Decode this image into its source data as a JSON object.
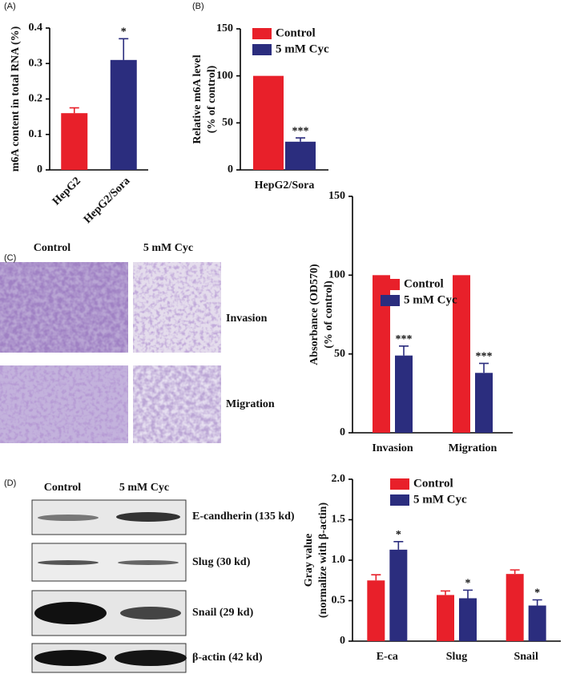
{
  "chart_data": [
    {
      "type": "bar",
      "panel": "(A)",
      "y_label": [
        "m6A content in total RNA (%)"
      ],
      "categories": [
        "HepG2",
        "HepG2/Sora"
      ],
      "values": [
        0.16,
        0.31
      ],
      "errors": [
        0.015,
        0.06
      ],
      "colors": [
        "#e8202a",
        "#2b2d7e"
      ],
      "significance": [
        null,
        "*"
      ],
      "ylim": [
        0,
        0.4
      ],
      "yticks": [
        0,
        0.1,
        0.2,
        0.3,
        0.4
      ]
    },
    {
      "type": "grouped-bar",
      "panel": "(B)",
      "y_label": [
        "Relative m6A level",
        "(% of control)"
      ],
      "categories": [
        "HepG2/Sora"
      ],
      "series": [
        {
          "name": "Control",
          "color": "#e8202a",
          "values": [
            100
          ],
          "errors": [
            0
          ],
          "significance": [
            null
          ]
        },
        {
          "name": "5 mM Cyc",
          "color": "#2b2d7e",
          "values": [
            30
          ],
          "errors": [
            4
          ],
          "significance": [
            "***"
          ]
        }
      ],
      "ylim": [
        0,
        150
      ],
      "yticks": [
        0,
        50,
        100,
        150
      ]
    },
    {
      "type": "grouped-bar",
      "panel": "(C)",
      "y_label": [
        "Absorbance (OD570)",
        "(% of control)"
      ],
      "categories": [
        "Invasion",
        "Migration"
      ],
      "series": [
        {
          "name": "Control",
          "color": "#e8202a",
          "values": [
            100,
            100
          ],
          "errors": [
            0,
            0
          ],
          "significance": [
            null,
            null
          ]
        },
        {
          "name": "5 mM Cyc",
          "color": "#2b2d7e",
          "values": [
            49,
            38
          ],
          "errors": [
            6,
            6
          ],
          "significance": [
            "***",
            "***"
          ]
        }
      ],
      "ylim": [
        0,
        150
      ],
      "yticks": [
        0,
        50,
        100,
        150
      ]
    },
    {
      "type": "grouped-bar",
      "panel": "(D)",
      "y_label": [
        "Gray value",
        "(normalize with β-actin)"
      ],
      "categories": [
        "E-ca",
        "Slug",
        "Snail"
      ],
      "series": [
        {
          "name": "Control",
          "color": "#e8202a",
          "values": [
            0.75,
            0.57,
            0.83
          ],
          "errors": [
            0.07,
            0.05,
            0.05
          ],
          "significance": [
            null,
            null,
            null
          ]
        },
        {
          "name": "5 mM Cyc",
          "color": "#2b2d7e",
          "values": [
            1.13,
            0.53,
            0.44
          ],
          "errors": [
            0.1,
            0.1,
            0.07
          ],
          "significance": [
            "*",
            "*",
            "*"
          ]
        }
      ],
      "ylim": [
        0,
        2
      ],
      "yticks": [
        0,
        0.5,
        {
          "value": 1,
          "label": "1.0"
        },
        1.5,
        {
          "value": 2,
          "label": "2.0"
        }
      ]
    }
  ],
  "micrographs": {
    "columns": [
      "Control",
      "5 mM Cyc"
    ],
    "rows": [
      "Invasion",
      "Migration"
    ]
  },
  "blots": {
    "columns": [
      "Control",
      "5 mM Cyc"
    ],
    "rows": [
      "E-candherin (135 kd)",
      "Slug (30 kd)",
      "Snail (29 kd)",
      "β-actin (42 kd)"
    ]
  }
}
